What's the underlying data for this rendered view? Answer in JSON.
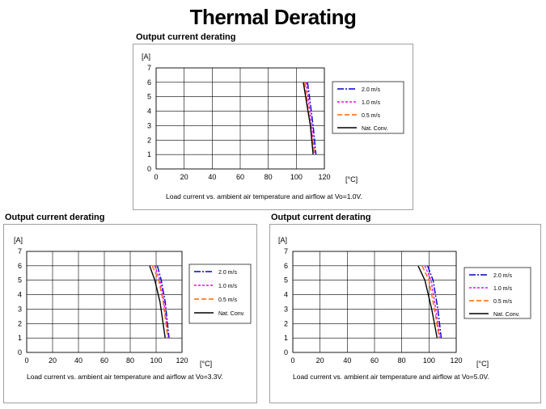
{
  "page_title": "Thermal Derating",
  "chart_data": [
    {
      "type": "line",
      "heading": "Output current derating",
      "caption": "Load current vs. ambient air temperature and airflow at Vo=1.0V.",
      "ylabel": "[A]",
      "xlabel": "[°C]",
      "xlim": [
        0,
        120
      ],
      "ylim": [
        0,
        7
      ],
      "xticks": [
        0,
        20,
        40,
        60,
        80,
        100,
        120
      ],
      "yticks": [
        0,
        1,
        2,
        3,
        4,
        5,
        6,
        7
      ],
      "grid": true,
      "legend_position": "right",
      "series": [
        {
          "name": "2.0 m/s",
          "color": "#0000cc",
          "dash": "dashdot",
          "points": [
            [
              108,
              6.0
            ],
            [
              110,
              4.5
            ],
            [
              112,
              3.0
            ],
            [
              114,
              1.0
            ]
          ]
        },
        {
          "name": "1.0 m/s",
          "color": "#ff00ff",
          "dash": "dashed",
          "points": [
            [
              107,
              6.0
            ],
            [
              109,
              4.5
            ],
            [
              111,
              3.0
            ],
            [
              113,
              1.0
            ]
          ]
        },
        {
          "name": "0.5 m/s",
          "color": "#ff6600",
          "dash": "longdash",
          "points": [
            [
              106,
              6.0
            ],
            [
              108,
              4.5
            ],
            [
              110,
              3.0
            ],
            [
              113,
              1.0
            ]
          ]
        },
        {
          "name": "Nat. Conv.",
          "color": "#000000",
          "dash": "solid",
          "points": [
            [
              105,
              6.0
            ],
            [
              107.5,
              4.5
            ],
            [
              110,
              3.0
            ],
            [
              112,
              1.0
            ]
          ]
        }
      ]
    },
    {
      "type": "line",
      "heading": "Output current derating",
      "caption": "Load current vs. ambient air temperature and airflow at Vo=3.3V.",
      "ylabel": "[A]",
      "xlabel": "[°C]",
      "xlim": [
        0,
        120
      ],
      "ylim": [
        0,
        7
      ],
      "xticks": [
        0,
        20,
        40,
        60,
        80,
        100,
        120
      ],
      "yticks": [
        0,
        1,
        2,
        3,
        4,
        5,
        6,
        7
      ],
      "grid": true,
      "legend_position": "right",
      "series": [
        {
          "name": "2.0 m/s",
          "color": "#0000cc",
          "dash": "dashdot",
          "points": [
            [
              101,
              6.0
            ],
            [
              104,
              5.0
            ],
            [
              107,
              3.5
            ],
            [
              110,
              1.0
            ]
          ]
        },
        {
          "name": "1.0 m/s",
          "color": "#ff00ff",
          "dash": "dashed",
          "points": [
            [
              99,
              6.0
            ],
            [
              103,
              5.0
            ],
            [
              106,
              3.5
            ],
            [
              109.5,
              1.0
            ]
          ]
        },
        {
          "name": "0.5 m/s",
          "color": "#ff6600",
          "dash": "longdash",
          "points": [
            [
              97,
              6.0
            ],
            [
              102,
              5.0
            ],
            [
              105.5,
              3.5
            ],
            [
              109,
              1.0
            ]
          ]
        },
        {
          "name": "Nat. Conv.",
          "color": "#000000",
          "dash": "solid",
          "points": [
            [
              95,
              6.0
            ],
            [
              99,
              5.0
            ],
            [
              103,
              3.5
            ],
            [
              107,
              1.0
            ]
          ]
        }
      ]
    },
    {
      "type": "line",
      "heading": "Output current derating",
      "caption": "Load current vs. ambient air temperature and airflow at Vo=5.0V.",
      "ylabel": "[A]",
      "xlabel": "[°C]",
      "xlim": [
        0,
        120
      ],
      "ylim": [
        0,
        7
      ],
      "xticks": [
        0,
        20,
        40,
        60,
        80,
        100,
        120
      ],
      "yticks": [
        0,
        1,
        2,
        3,
        4,
        5,
        6,
        7
      ],
      "grid": true,
      "legend_position": "right",
      "series": [
        {
          "name": "2.0 m/s",
          "color": "#0000cc",
          "dash": "dashdot",
          "points": [
            [
              99,
              6.0
            ],
            [
              103,
              5.0
            ],
            [
              106.5,
              3.0
            ],
            [
              109,
              1.0
            ]
          ]
        },
        {
          "name": "1.0 m/s",
          "color": "#ff00ff",
          "dash": "dashed",
          "points": [
            [
              97,
              6.0
            ],
            [
              101.5,
              5.0
            ],
            [
              105,
              3.0
            ],
            [
              108,
              1.0
            ]
          ]
        },
        {
          "name": "0.5 m/s",
          "color": "#ff6600",
          "dash": "longdash",
          "points": [
            [
              95,
              6.0
            ],
            [
              100,
              5.0
            ],
            [
              104,
              3.0
            ],
            [
              107.5,
              1.0
            ]
          ]
        },
        {
          "name": "Nat. Conv.",
          "color": "#000000",
          "dash": "solid",
          "points": [
            [
              92,
              6.0
            ],
            [
              97,
              5.0
            ],
            [
              102,
              3.0
            ],
            [
              106,
              1.0
            ]
          ]
        }
      ]
    }
  ]
}
